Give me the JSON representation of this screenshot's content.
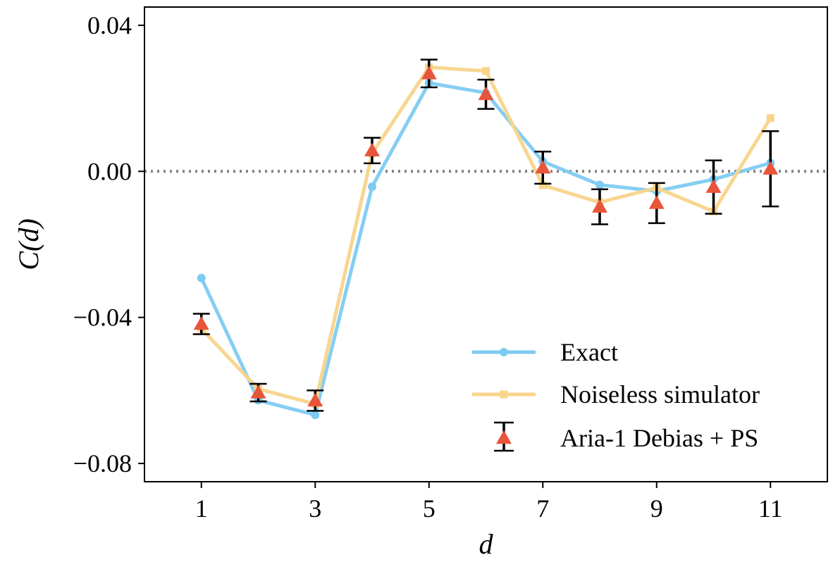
{
  "chart_data": {
    "type": "line",
    "xlabel": "d",
    "ylabel": "C(d)",
    "xlim": [
      0.0,
      12.0
    ],
    "ylim": [
      -0.085,
      0.045
    ],
    "xticks": [
      1,
      3,
      5,
      7,
      9,
      11
    ],
    "xtick_labels": [
      "1",
      "3",
      "5",
      "7",
      "9",
      "11"
    ],
    "yticks": [
      0.04,
      0.0,
      -0.04,
      -0.08
    ],
    "ytick_labels": [
      "0.04",
      "0.00",
      "−0.04",
      "−0.08"
    ],
    "grid": false,
    "legend_position": "lower-right",
    "reference_line": {
      "y": 0.0,
      "style": "dotted",
      "color": "#7f7f7f"
    },
    "series": [
      {
        "name": "Exact",
        "style": "line",
        "marker": "circle",
        "color": "#7ecbf2",
        "x": [
          1,
          2,
          3,
          4,
          5,
          6,
          7,
          8,
          9,
          10,
          11
        ],
        "values": [
          -0.0292,
          -0.0627,
          -0.0667,
          -0.0042,
          0.0242,
          0.0215,
          0.0027,
          -0.0037,
          -0.0054,
          -0.0022,
          0.0023
        ]
      },
      {
        "name": "Noiseless simulator",
        "style": "line",
        "marker": "square",
        "color": "#f8d48a",
        "x": [
          1,
          2,
          3,
          4,
          5,
          6,
          7,
          8,
          9,
          10,
          11
        ],
        "values": [
          -0.0431,
          -0.0596,
          -0.0637,
          0.0049,
          0.0285,
          0.0275,
          -0.0038,
          -0.0085,
          -0.0045,
          -0.011,
          0.0146
        ]
      },
      {
        "name": "Aria-1 Debias + PS",
        "style": "errorbar",
        "marker": "triangle",
        "color": "#e8553a",
        "errorbar_color": "#000000",
        "x": [
          1,
          2,
          3,
          4,
          5,
          6,
          7,
          8,
          9,
          10,
          11
        ],
        "values": [
          -0.0418,
          -0.0606,
          -0.0628,
          0.0057,
          0.0268,
          0.0211,
          0.001,
          -0.0097,
          -0.0087,
          -0.0043,
          0.0007
        ],
        "errors": [
          0.0028,
          0.0024,
          0.0028,
          0.0035,
          0.0038,
          0.004,
          0.0044,
          0.0048,
          0.0055,
          0.0073,
          0.0103
        ]
      }
    ]
  }
}
